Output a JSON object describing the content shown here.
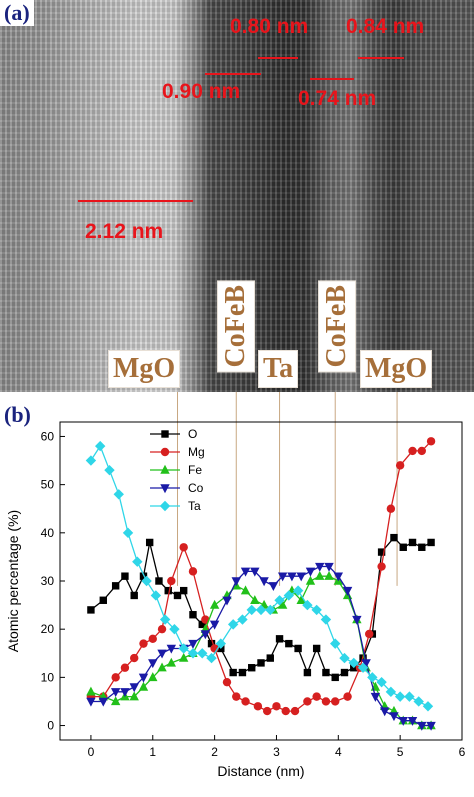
{
  "panel_a": {
    "label": "(a)",
    "measurements": [
      {
        "text": "0.80 nm"
      },
      {
        "text": "0.84 nm"
      },
      {
        "text": "0.90 nm"
      },
      {
        "text": "0.74 nm"
      },
      {
        "text": "2.12 nm"
      }
    ],
    "layers": [
      "MgO",
      "CoFeB",
      "Ta",
      "CoFeB",
      "MgO"
    ],
    "colors": {
      "measure": "#e8141b",
      "layer_text": "#a66f3a",
      "panel_label": "#1a237e"
    }
  },
  "panel_b": {
    "label": "(b)"
  },
  "chart_data": {
    "type": "line",
    "xlabel": "Distance (nm)",
    "ylabel": "Atomic percentage (%)",
    "xlim": [
      -0.5,
      6
    ],
    "ylim": [
      -3,
      63
    ],
    "xticks": [
      0,
      1,
      2,
      3,
      4,
      5,
      6
    ],
    "yticks": [
      0,
      10,
      20,
      30,
      40,
      50,
      60
    ],
    "grid": false,
    "legend": "top-left",
    "layer_marker_x": [
      1.4,
      2.35,
      3.05,
      3.95,
      4.95
    ],
    "series": [
      {
        "name": "O",
        "color": "#000000",
        "marker": "square",
        "x": [
          0,
          0.2,
          0.4,
          0.55,
          0.7,
          0.85,
          0.95,
          1.1,
          1.25,
          1.4,
          1.5,
          1.65,
          1.8,
          1.95,
          2.1,
          2.3,
          2.45,
          2.6,
          2.75,
          2.9,
          3.05,
          3.2,
          3.35,
          3.5,
          3.65,
          3.8,
          3.95,
          4.1,
          4.25,
          4.4,
          4.55,
          4.7,
          4.9,
          5.05,
          5.2,
          5.35,
          5.5
        ],
        "y": [
          24,
          26,
          29,
          31,
          27,
          31,
          38,
          30,
          28,
          27,
          28,
          23,
          21,
          17,
          16,
          11,
          11,
          12,
          13,
          14,
          18,
          17,
          16,
          11,
          16,
          11,
          10,
          11,
          12,
          14,
          19,
          36,
          39,
          37,
          38,
          37,
          38
        ]
      },
      {
        "name": "Mg",
        "color": "#d62020",
        "marker": "circle",
        "x": [
          0,
          0.2,
          0.4,
          0.55,
          0.7,
          0.85,
          1.0,
          1.15,
          1.3,
          1.5,
          1.65,
          1.85,
          2.0,
          2.2,
          2.35,
          2.5,
          2.7,
          2.85,
          3.0,
          3.15,
          3.3,
          3.5,
          3.65,
          3.8,
          3.95,
          4.15,
          4.35,
          4.5,
          4.7,
          4.85,
          5.0,
          5.2,
          5.35,
          5.5
        ],
        "y": [
          6,
          6,
          10,
          12,
          14,
          17,
          18,
          20,
          30,
          37,
          32,
          22,
          16,
          9,
          6,
          5,
          4,
          3,
          4,
          3,
          3,
          5,
          6,
          5,
          5,
          6,
          12,
          19,
          33,
          45,
          54,
          57,
          57,
          59
        ]
      },
      {
        "name": "Fe",
        "color": "#22c01a",
        "marker": "triangle-up",
        "x": [
          0,
          0.2,
          0.4,
          0.55,
          0.7,
          0.85,
          1.0,
          1.15,
          1.3,
          1.5,
          1.65,
          1.85,
          2.0,
          2.2,
          2.35,
          2.5,
          2.65,
          2.8,
          2.95,
          3.1,
          3.25,
          3.4,
          3.55,
          3.7,
          3.85,
          4.0,
          4.15,
          4.3,
          4.45,
          4.6,
          4.75,
          4.9,
          5.05,
          5.2,
          5.35,
          5.5
        ],
        "y": [
          7,
          6,
          5,
          6,
          6,
          8,
          10,
          12,
          13,
          14,
          15,
          20,
          25,
          27,
          29,
          28,
          26,
          25,
          24,
          25,
          28,
          26,
          30,
          31,
          31,
          30,
          27,
          22,
          12,
          8,
          4,
          3,
          1,
          1,
          0,
          0
        ]
      },
      {
        "name": "Co",
        "color": "#1a1aa6",
        "marker": "triangle-down",
        "x": [
          0,
          0.2,
          0.4,
          0.55,
          0.7,
          0.85,
          1.0,
          1.15,
          1.3,
          1.5,
          1.65,
          1.85,
          2.0,
          2.2,
          2.35,
          2.5,
          2.65,
          2.8,
          2.95,
          3.1,
          3.25,
          3.4,
          3.55,
          3.7,
          3.85,
          4.0,
          4.15,
          4.3,
          4.45,
          4.6,
          4.75,
          4.9,
          5.05,
          5.2,
          5.35,
          5.5
        ],
        "y": [
          5,
          5,
          7,
          7,
          8,
          10,
          13,
          15,
          16,
          16,
          17,
          19,
          21,
          26,
          30,
          32,
          32,
          30,
          29,
          31,
          31,
          31,
          32,
          33,
          33,
          31,
          28,
          22,
          13,
          6,
          3,
          2,
          1,
          1,
          0,
          0
        ]
      },
      {
        "name": "Ta",
        "color": "#2fd6e8",
        "marker": "diamond",
        "x": [
          0,
          0.15,
          0.3,
          0.45,
          0.6,
          0.75,
          0.9,
          1.05,
          1.2,
          1.35,
          1.5,
          1.65,
          1.8,
          1.95,
          2.1,
          2.3,
          2.45,
          2.6,
          2.75,
          2.9,
          3.05,
          3.2,
          3.35,
          3.5,
          3.65,
          3.8,
          3.95,
          4.1,
          4.25,
          4.4,
          4.55,
          4.7,
          4.85,
          5.0,
          5.15,
          5.3,
          5.45
        ],
        "y": [
          55,
          58,
          53,
          48,
          40,
          34,
          30,
          27,
          22,
          20,
          16,
          15,
          15,
          14,
          17,
          21,
          22,
          24,
          24,
          24,
          26,
          27,
          28,
          25,
          24,
          22,
          17,
          14,
          13,
          12,
          10,
          9,
          7,
          6,
          6,
          5,
          4
        ]
      }
    ]
  }
}
